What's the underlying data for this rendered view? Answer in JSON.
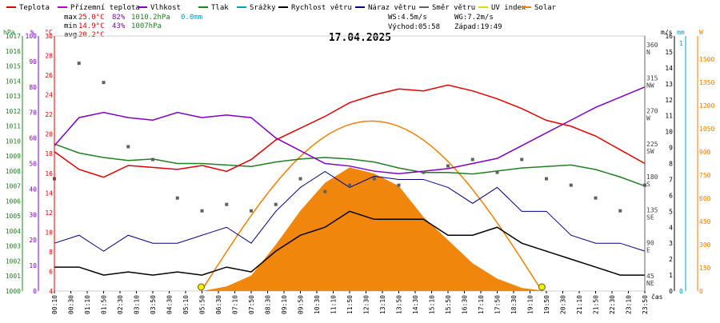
{
  "legend": [
    {
      "label": "Teplota",
      "color": "#e00000"
    },
    {
      "label": "Přízemní teplota",
      "color": "#c000c0"
    },
    {
      "label": "Vlhkost",
      "color": "#8000c0"
    },
    {
      "label": "Tlak",
      "color": "#208020"
    },
    {
      "label": "Srážky",
      "color": "#00a0c0"
    },
    {
      "label": "Rychlost větru",
      "color": "#000000"
    },
    {
      "label": "Náraz větru",
      "color": "#000080"
    },
    {
      "label": "Směr větru",
      "color": "#606060"
    },
    {
      "label": "UV index",
      "color": "#e0e000"
    },
    {
      "label": "Solar",
      "color": "#f08000"
    }
  ],
  "stats": {
    "max_label": "max",
    "max_temp": "25.0°C",
    "max_hum": "82%",
    "max_press": "1010.2hPa",
    "max_rain": "0.0mm",
    "min_label": "min",
    "min_temp": "14.9°C",
    "min_hum": "43%",
    "min_press": "1007hPa",
    "avg_label": "avg",
    "avg_temp": "20.2°C",
    "ws": "WS:4.5m/s",
    "wg": "WG:7.2m/s",
    "sunrise": "Východ:05:58",
    "sunset": "Západ:19:49"
  },
  "chart_data": {
    "type": "line",
    "title": "17.04.2025",
    "xlabel": "čas",
    "x_ticks": [
      "00:10",
      "00:30",
      "01:10",
      "01:50",
      "02:30",
      "03:10",
      "03:50",
      "04:30",
      "05:10",
      "05:50",
      "06:30",
      "07:10",
      "07:50",
      "08:30",
      "09:10",
      "09:50",
      "10:30",
      "11:10",
      "11:50",
      "12:30",
      "13:10",
      "13:50",
      "14:30",
      "15:10",
      "15:50",
      "16:30",
      "17:10",
      "17:50",
      "18:30",
      "19:10",
      "19:50",
      "20:30",
      "21:10",
      "21:50",
      "22:30",
      "23:10",
      "23:50"
    ],
    "axes": {
      "hpa": {
        "label": "hPa",
        "color": "#208020",
        "ticks": [
          "1017",
          "1016",
          "1015",
          "1014",
          "1013",
          "1012",
          "1011",
          "1010",
          "1009",
          "1008",
          "1007",
          "1006",
          "1005",
          "1004",
          "1003",
          "1002",
          "1001",
          "1000"
        ],
        "range": [
          1000,
          1017
        ]
      },
      "pct": {
        "label": "%",
        "color": "#8000c0",
        "ticks": [
          "100",
          "90",
          "80",
          "70",
          "60",
          "50",
          "40",
          "30",
          "20",
          "10",
          "0"
        ],
        "range": [
          0,
          100
        ]
      },
      "temp": {
        "label": "°C",
        "color": "#e00000",
        "ticks": [
          "30",
          "28",
          "26",
          "24",
          "22",
          "20",
          "18",
          "16",
          "14",
          "12",
          "10",
          "8",
          "6",
          "4"
        ],
        "range": [
          4,
          30
        ]
      },
      "dir": {
        "ticks": [
          "360",
          "N",
          "315",
          "NW",
          "270",
          "W",
          "225",
          "SW",
          "180",
          "S",
          "135",
          "SE",
          "90",
          "E",
          "45",
          "NE"
        ]
      },
      "ms": {
        "label": "m/s",
        "ticks": [
          "16",
          "15",
          "14",
          "13",
          "12",
          "11",
          "10",
          "9",
          "8",
          "7",
          "6",
          "5",
          "4",
          "3",
          "2",
          "1",
          "0"
        ],
        "range": [
          0,
          16
        ]
      },
      "mm": {
        "label": "mm",
        "color": "#00a0c0",
        "ticks": [
          "1",
          "0"
        ],
        "range": [
          0,
          1
        ]
      },
      "w": {
        "label": "W",
        "color": "#f08000",
        "ticks": [
          "1500",
          "1350",
          "1200",
          "1050",
          "900",
          "750",
          "600",
          "450",
          "300",
          "150",
          "0"
        ],
        "range": [
          0,
          1500
        ]
      }
    },
    "hours": [
      0,
      1,
      2,
      3,
      4,
      5,
      6,
      7,
      8,
      9,
      10,
      11,
      12,
      13,
      14,
      15,
      16,
      17,
      18,
      19,
      20,
      21,
      22,
      23,
      24
    ],
    "series": [
      {
        "name": "Teplota",
        "color": "#e00000",
        "values": [
          18.2,
          16.4,
          15.6,
          16.8,
          16.6,
          16.4,
          16.8,
          16.2,
          17.4,
          19.4,
          20.6,
          21.8,
          23.2,
          24.0,
          24.6,
          24.4,
          25.0,
          24.4,
          23.6,
          22.6,
          21.4,
          20.8,
          19.8,
          18.4,
          17.0
        ]
      },
      {
        "name": "Vlhkost",
        "color": "#8000c0",
        "values": [
          57,
          68,
          70,
          68,
          67,
          70,
          68,
          69,
          68,
          60,
          55,
          50,
          49,
          47,
          46,
          47,
          48,
          50,
          52,
          57,
          62,
          67,
          72,
          76,
          80
        ]
      },
      {
        "name": "Tlak",
        "color": "#208020",
        "unit": "hPa",
        "values": [
          1009.8,
          1009.2,
          1008.9,
          1008.7,
          1008.8,
          1008.5,
          1008.5,
          1008.4,
          1008.3,
          1008.6,
          1008.8,
          1008.9,
          1008.8,
          1008.6,
          1008.2,
          1007.9,
          1007.9,
          1007.8,
          1008.0,
          1008.2,
          1008.3,
          1008.4,
          1008.1,
          1007.6,
          1007.0
        ]
      },
      {
        "name": "Rychlost větru",
        "color": "#000000",
        "unit": "m/s",
        "values": [
          1.5,
          1.5,
          1.0,
          1.2,
          1.0,
          1.2,
          1.0,
          1.5,
          1.2,
          2.5,
          3.5,
          4.0,
          5.0,
          4.5,
          4.5,
          4.5,
          3.5,
          3.5,
          4.0,
          3.0,
          2.5,
          2.0,
          1.5,
          1.0,
          1.0
        ]
      },
      {
        "name": "Náraz větru",
        "color": "#000080",
        "unit": "m/s",
        "values": [
          3.0,
          3.5,
          2.5,
          3.5,
          3.0,
          3.0,
          3.5,
          4.0,
          3.0,
          5.0,
          6.5,
          7.5,
          6.5,
          7.2,
          7.0,
          7.0,
          6.5,
          5.5,
          6.5,
          5.0,
          5.0,
          3.5,
          3.0,
          3.0,
          2.5
        ]
      },
      {
        "name": "Solar",
        "color": "#f08000",
        "unit": "W",
        "values": [
          0,
          0,
          0,
          0,
          0,
          0,
          0,
          30,
          100,
          300,
          520,
          700,
          800,
          760,
          680,
          480,
          330,
          180,
          80,
          20,
          0,
          0,
          0,
          0,
          0
        ]
      },
      {
        "name": "Směr větru",
        "color": "#606060",
        "unit": "°",
        "values": [
          150,
          330,
          300,
          200,
          180,
          120,
          100,
          110,
          100,
          110,
          150,
          130,
          140,
          150,
          140,
          160,
          170,
          180,
          160,
          180,
          150,
          140,
          120,
          100,
          140
        ]
      }
    ],
    "clear_sky_peak_w": 1100,
    "uv_index_markers": [
      "05:58",
      "19:49"
    ]
  }
}
